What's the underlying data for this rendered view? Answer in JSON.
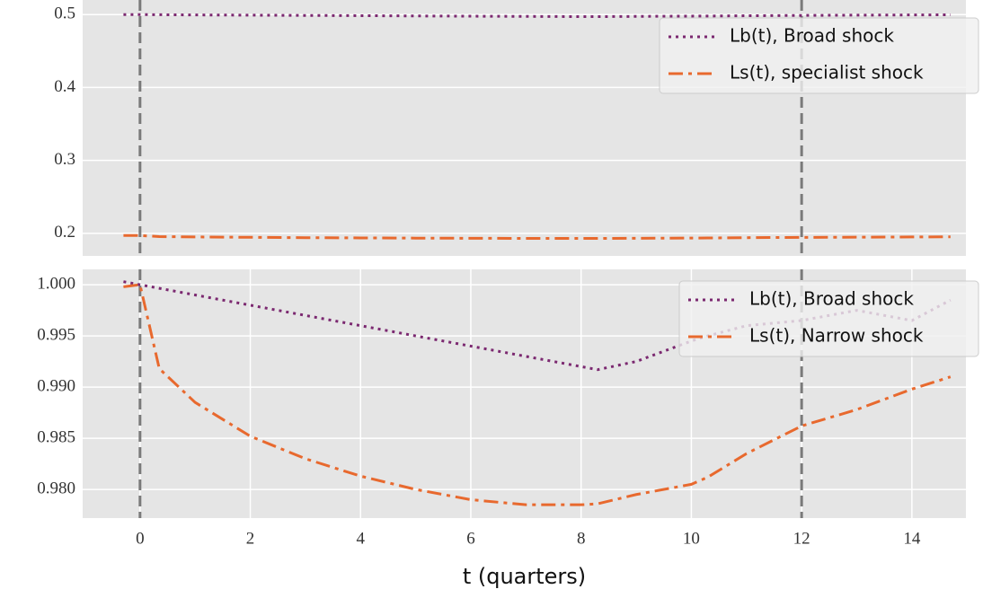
{
  "chart_data": [
    {
      "type": "line",
      "legend": "upper right",
      "grid": true,
      "x": [
        -0.3,
        0,
        0.35,
        1,
        2,
        3,
        4,
        5,
        6,
        7,
        8,
        8.3,
        9,
        10,
        10.3,
        11,
        12,
        13,
        14,
        14.7
      ],
      "series": [
        {
          "name": "Lb(t), Broad shock",
          "color": "#7b2870",
          "style": "dotted",
          "values": [
            0.5,
            0.5,
            0.4998,
            0.4995,
            0.4992,
            0.4988,
            0.4985,
            0.4981,
            0.4978,
            0.4975,
            0.4972,
            0.4972,
            0.4975,
            0.4979,
            0.498,
            0.4984,
            0.4988,
            0.4992,
            0.4995,
            0.4997
          ]
        },
        {
          "name": "Ls(t), specialist shock",
          "color": "#e8692e",
          "style": "dashdot",
          "values": [
            0.197,
            0.197,
            0.1955,
            0.195,
            0.1945,
            0.194,
            0.1937,
            0.1934,
            0.1932,
            0.193,
            0.193,
            0.193,
            0.1932,
            0.1935,
            0.1936,
            0.194,
            0.1944,
            0.1947,
            0.195,
            0.1952
          ]
        }
      ],
      "vlines": [
        0,
        12
      ],
      "xlim": [
        -1.04,
        14.98
      ],
      "ylim": [
        0.169,
        0.52
      ],
      "yticks": [
        0.2,
        0.3,
        0.4,
        0.5
      ]
    },
    {
      "type": "line",
      "legend": "upper right",
      "grid": true,
      "x": [
        -0.3,
        0,
        0.35,
        1,
        2,
        3,
        4,
        5,
        6,
        7,
        8,
        8.3,
        9,
        10,
        10.3,
        11,
        12,
        13,
        14,
        14.7
      ],
      "series": [
        {
          "name": "Lb(t), Broad shock",
          "color": "#7b2870",
          "style": "dotted",
          "values": [
            1.0003,
            1.0,
            0.99965,
            0.999,
            0.998,
            0.997,
            0.996,
            0.995,
            0.994,
            0.993,
            0.992,
            0.9917,
            0.9925,
            0.9945,
            0.995,
            0.996,
            0.9965,
            0.9975,
            0.9965,
            0.9985
          ]
        },
        {
          "name": "Ls(t), Narrow shock",
          "color": "#e8692e",
          "style": "dashdot",
          "values": [
            0.9998,
            1.0,
            0.9918,
            0.9885,
            0.9852,
            0.983,
            0.9813,
            0.98,
            0.979,
            0.9785,
            0.9785,
            0.9786,
            0.9795,
            0.9805,
            0.9812,
            0.9835,
            0.9862,
            0.9878,
            0.9898,
            0.991
          ]
        }
      ],
      "vlines": [
        0,
        12
      ],
      "xlim": [
        -1.04,
        14.98
      ],
      "ylim": [
        0.9772,
        1.0015
      ],
      "xticks": [
        0,
        2,
        4,
        6,
        8,
        10,
        12,
        14
      ],
      "yticks": [
        {
          "value": 0.98,
          "label": "0.980"
        },
        {
          "value": 0.985,
          "label": "0.985"
        },
        {
          "value": 0.99,
          "label": "0.990"
        },
        {
          "value": 0.995,
          "label": "0.995"
        },
        {
          "value": 1.0,
          "label": "1.000"
        }
      ],
      "xlabel": "t (quarters)"
    }
  ]
}
